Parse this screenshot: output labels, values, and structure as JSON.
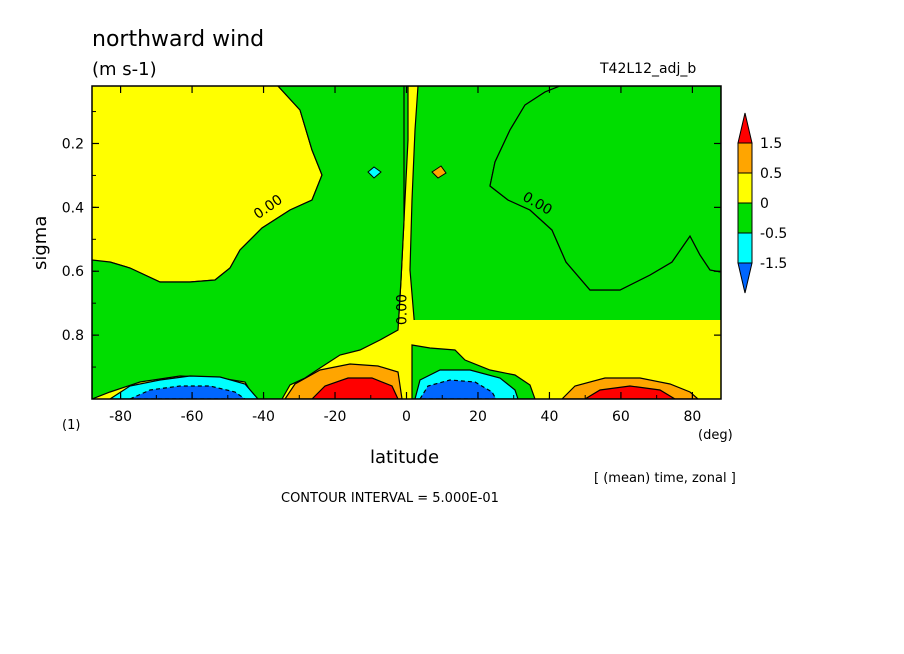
{
  "chart_data": {
    "type": "heatmap",
    "title": "northward wind",
    "units": "(m s-1)",
    "run_label": "T42L12_adj_b",
    "xlabel": "latitude",
    "x_unit": "(deg)",
    "ylabel": "sigma",
    "panel_label": "(1)",
    "average_note": "[ (mean) time, zonal ]",
    "contour_interval_text": "CONTOUR INTERVAL = 5.000E-01",
    "contour_interval": 0.5,
    "xlim": [
      -88,
      88
    ],
    "ylim": [
      1.0,
      0.02
    ],
    "x_ticks": [
      -80,
      -60,
      -40,
      -20,
      0,
      20,
      40,
      60,
      80
    ],
    "y_ticks": [
      0.2,
      0.4,
      0.6,
      0.8
    ],
    "contour_labels": [
      {
        "text": "0.00",
        "lat": -38,
        "sigma": 0.41
      },
      {
        "text": "0.00",
        "lat": 36,
        "sigma": 0.4
      },
      {
        "text": "0.00",
        "lat": 0,
        "sigma": 0.72
      }
    ],
    "colorbar": {
      "levels": [
        "1.5",
        "0.5",
        "0",
        "-0.5",
        "-1.5"
      ],
      "colors": [
        "#ff0000",
        "#ffa500",
        "#ffff00",
        "#00dd00",
        "#00ffff",
        "#0066ff"
      ]
    },
    "regions": [
      {
        "sign": "negative",
        "value": -0.25,
        "description_lat": [
          -88,
          -40
        ],
        "description_sigma": [
          0.02,
          0.7
        ]
      },
      {
        "sign": "negative",
        "value": -0.25,
        "description_lat": [
          2,
          38
        ],
        "description_sigma": [
          0.78,
          1.0
        ]
      },
      {
        "sign": "negative",
        "value": -0.25,
        "description_lat": [
          22,
          88
        ],
        "description_sigma": [
          0.02,
          0.65
        ]
      },
      {
        "sign": "positive",
        "value": 0.25,
        "description_lat": [
          -88,
          88
        ],
        "description_sigma": [
          0.02,
          1.0
        ]
      }
    ],
    "extrema": [
      {
        "lat": -63,
        "sigma": 0.98,
        "value": -1.6
      },
      {
        "lat": -16,
        "sigma": 0.97,
        "value": 1.7
      },
      {
        "lat": 10,
        "sigma": 0.97,
        "value": -1.7
      },
      {
        "lat": 62,
        "sigma": 0.98,
        "value": 1.2
      },
      {
        "lat": -10,
        "sigma": 0.29,
        "value": -0.6
      },
      {
        "lat": 10,
        "sigma": 0.29,
        "value": 0.6
      }
    ]
  }
}
